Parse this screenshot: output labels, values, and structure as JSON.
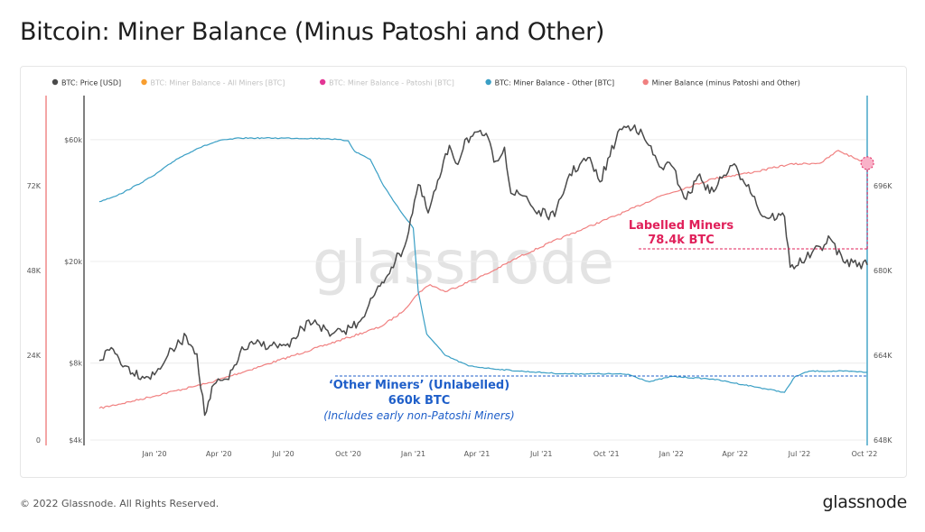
{
  "page": {
    "title": "Bitcoin: Miner Balance (Minus Patoshi and Other)",
    "footer": "© 2022 Glassnode. All Rights Reserved.",
    "brand": "glassnode",
    "watermark": "glassnode"
  },
  "chart_data": {
    "type": "line",
    "legend": {
      "placement": "top-left",
      "items": [
        {
          "label": "BTC: Price [USD]",
          "color": "#4a4a4a",
          "active": true
        },
        {
          "label": "BTC: Miner Balance - All Miners [BTC]",
          "color": "#f7931a",
          "active": false
        },
        {
          "label": "BTC: Miner Balance - Patoshi [BTC]",
          "color": "#e0208a",
          "active": false
        },
        {
          "label": "BTC: Miner Balance - Other [BTC]",
          "color": "#3a9fc5",
          "active": true
        },
        {
          "label": "Miner Balance (minus Patoshi and Other)",
          "color": "#f08080",
          "active": true
        }
      ]
    },
    "x_ticks": [
      "Jan '20",
      "Apr '20",
      "Jul '20",
      "Oct '20",
      "Jan '21",
      "Apr '21",
      "Jul '21",
      "Oct '21",
      "Jan '22",
      "Apr '22",
      "Jul '22",
      "Oct '22"
    ],
    "axes": {
      "price": {
        "scale": "log",
        "ticks": [
          "$4k",
          "$8k",
          "$20k",
          "$60k"
        ],
        "tick_values": [
          4000,
          8000,
          20000,
          60000
        ],
        "range": [
          4000,
          85000
        ],
        "color": "#4a4a4a"
      },
      "miner_balance": {
        "ticks": [
          "0",
          "24K",
          "48K",
          "72K"
        ],
        "tick_values": [
          0,
          24000,
          48000,
          72000
        ],
        "range": [
          0,
          96000
        ],
        "color": "#f08080"
      },
      "other_balance": {
        "ticks": [
          "648K",
          "664K",
          "680K",
          "696K"
        ],
        "tick_values": [
          648000,
          664000,
          680000,
          696000
        ],
        "range": [
          648000,
          712000
        ],
        "color": "#3a9fc5"
      }
    },
    "series": [
      {
        "name": "BTC: Price [USD]",
        "axis": "price",
        "color": "#4a4a4a",
        "points": [
          [
            "2019-10-15",
            8200
          ],
          [
            "2019-11-01",
            9200
          ],
          [
            "2019-11-20",
            7800
          ],
          [
            "2019-12-15",
            7100
          ],
          [
            "2020-01-01",
            7200
          ],
          [
            "2020-01-20",
            8600
          ],
          [
            "2020-02-15",
            10200
          ],
          [
            "2020-03-01",
            8700
          ],
          [
            "2020-03-12",
            5000
          ],
          [
            "2020-03-25",
            6600
          ],
          [
            "2020-04-15",
            6900
          ],
          [
            "2020-05-01",
            8800
          ],
          [
            "2020-05-20",
            9500
          ],
          [
            "2020-06-15",
            9400
          ],
          [
            "2020-07-10",
            9250
          ],
          [
            "2020-07-28",
            11000
          ],
          [
            "2020-08-15",
            11800
          ],
          [
            "2020-09-05",
            10200
          ],
          [
            "2020-09-25",
            10700
          ],
          [
            "2020-10-15",
            11500
          ],
          [
            "2020-10-30",
            13500
          ],
          [
            "2020-11-15",
            16000
          ],
          [
            "2020-12-01",
            19000
          ],
          [
            "2020-12-20",
            23000
          ],
          [
            "2021-01-08",
            40000
          ],
          [
            "2021-01-22",
            31000
          ],
          [
            "2021-02-10",
            45000
          ],
          [
            "2021-02-21",
            57000
          ],
          [
            "2021-03-05",
            48000
          ],
          [
            "2021-03-15",
            60000
          ],
          [
            "2021-04-14",
            63500
          ],
          [
            "2021-04-25",
            49000
          ],
          [
            "2021-05-10",
            56000
          ],
          [
            "2021-05-19",
            37000
          ],
          [
            "2021-06-10",
            36000
          ],
          [
            "2021-06-22",
            31500
          ],
          [
            "2021-07-20",
            30000
          ],
          [
            "2021-08-10",
            44000
          ],
          [
            "2021-09-05",
            51000
          ],
          [
            "2021-09-22",
            41000
          ],
          [
            "2021-10-20",
            66000
          ],
          [
            "2021-11-10",
            68500
          ],
          [
            "2021-11-30",
            57000
          ],
          [
            "2021-12-15",
            47000
          ],
          [
            "2022-01-01",
            47500
          ],
          [
            "2022-01-22",
            35000
          ],
          [
            "2022-02-10",
            44000
          ],
          [
            "2022-02-24",
            37000
          ],
          [
            "2022-03-28",
            47500
          ],
          [
            "2022-04-20",
            40000
          ],
          [
            "2022-05-10",
            30000
          ],
          [
            "2022-06-10",
            30000
          ],
          [
            "2022-06-18",
            19000
          ],
          [
            "2022-07-10",
            20500
          ],
          [
            "2022-08-14",
            24500
          ],
          [
            "2022-09-01",
            20000
          ],
          [
            "2022-09-15",
            19800
          ],
          [
            "2022-10-05",
            19400
          ]
        ]
      },
      {
        "name": "BTC: Miner Balance - Other [BTC]",
        "axis": "other_balance",
        "color": "#3a9fc5",
        "points": [
          [
            "2019-10-15",
            693000
          ],
          [
            "2019-11-15",
            694500
          ],
          [
            "2020-01-01",
            698000
          ],
          [
            "2020-02-01",
            701000
          ],
          [
            "2020-03-01",
            703000
          ],
          [
            "2020-04-01",
            704500
          ],
          [
            "2020-05-01",
            705000
          ],
          [
            "2020-07-01",
            705000
          ],
          [
            "2020-09-01",
            704900
          ],
          [
            "2020-10-01",
            704500
          ],
          [
            "2020-10-10",
            702500
          ],
          [
            "2020-11-01",
            701000
          ],
          [
            "2020-11-20",
            696000
          ],
          [
            "2020-12-15",
            691000
          ],
          [
            "2021-01-01",
            688000
          ],
          [
            "2021-01-08",
            676000
          ],
          [
            "2021-01-20",
            668000
          ],
          [
            "2021-02-15",
            664000
          ],
          [
            "2021-03-20",
            662000
          ],
          [
            "2021-04-20",
            661500
          ],
          [
            "2021-06-01",
            661000
          ],
          [
            "2021-08-01",
            660500
          ],
          [
            "2021-10-01",
            660500
          ],
          [
            "2021-11-01",
            660400
          ],
          [
            "2021-12-01",
            659000
          ],
          [
            "2022-01-01",
            660000
          ],
          [
            "2022-03-01",
            659500
          ],
          [
            "2022-05-01",
            658000
          ],
          [
            "2022-06-10",
            657000
          ],
          [
            "2022-06-25",
            660000
          ],
          [
            "2022-07-15",
            661000
          ],
          [
            "2022-08-01",
            661000
          ],
          [
            "2022-09-01",
            661000
          ],
          [
            "2022-10-05",
            660800
          ]
        ]
      },
      {
        "name": "Miner Balance (minus Patoshi and Other)",
        "axis": "miner_balance",
        "color": "#f08080",
        "points": [
          [
            "2019-10-15",
            9000
          ],
          [
            "2019-12-01",
            11000
          ],
          [
            "2020-02-01",
            14000
          ],
          [
            "2020-03-15",
            16000
          ],
          [
            "2020-04-15",
            18000
          ],
          [
            "2020-06-01",
            21000
          ],
          [
            "2020-08-01",
            25000
          ],
          [
            "2020-10-01",
            29000
          ],
          [
            "2020-11-15",
            32000
          ],
          [
            "2020-12-15",
            36000
          ],
          [
            "2021-01-10",
            42000
          ],
          [
            "2021-01-25",
            44000
          ],
          [
            "2021-02-15",
            42000
          ],
          [
            "2021-04-15",
            47000
          ],
          [
            "2021-06-01",
            52000
          ],
          [
            "2021-07-15",
            56000
          ],
          [
            "2021-09-01",
            60000
          ],
          [
            "2021-11-01",
            65000
          ],
          [
            "2021-12-15",
            69000
          ],
          [
            "2022-01-15",
            71000
          ],
          [
            "2022-03-01",
            74000
          ],
          [
            "2022-05-01",
            76000
          ],
          [
            "2022-06-15",
            78000
          ],
          [
            "2022-08-01",
            78500
          ],
          [
            "2022-08-25",
            82000
          ],
          [
            "2022-09-15",
            80000
          ],
          [
            "2022-10-05",
            78400
          ]
        ]
      }
    ],
    "annotations": [
      {
        "lines": [
          "Labelled Miners",
          "78.4k BTC"
        ],
        "color": "#e0205a"
      },
      {
        "lines": [
          "‘Other Miners’ (Unlabelled)",
          "660k BTC",
          "(Includes early non-Patoshi Miners)"
        ],
        "color": "#1f5fc9"
      }
    ]
  }
}
